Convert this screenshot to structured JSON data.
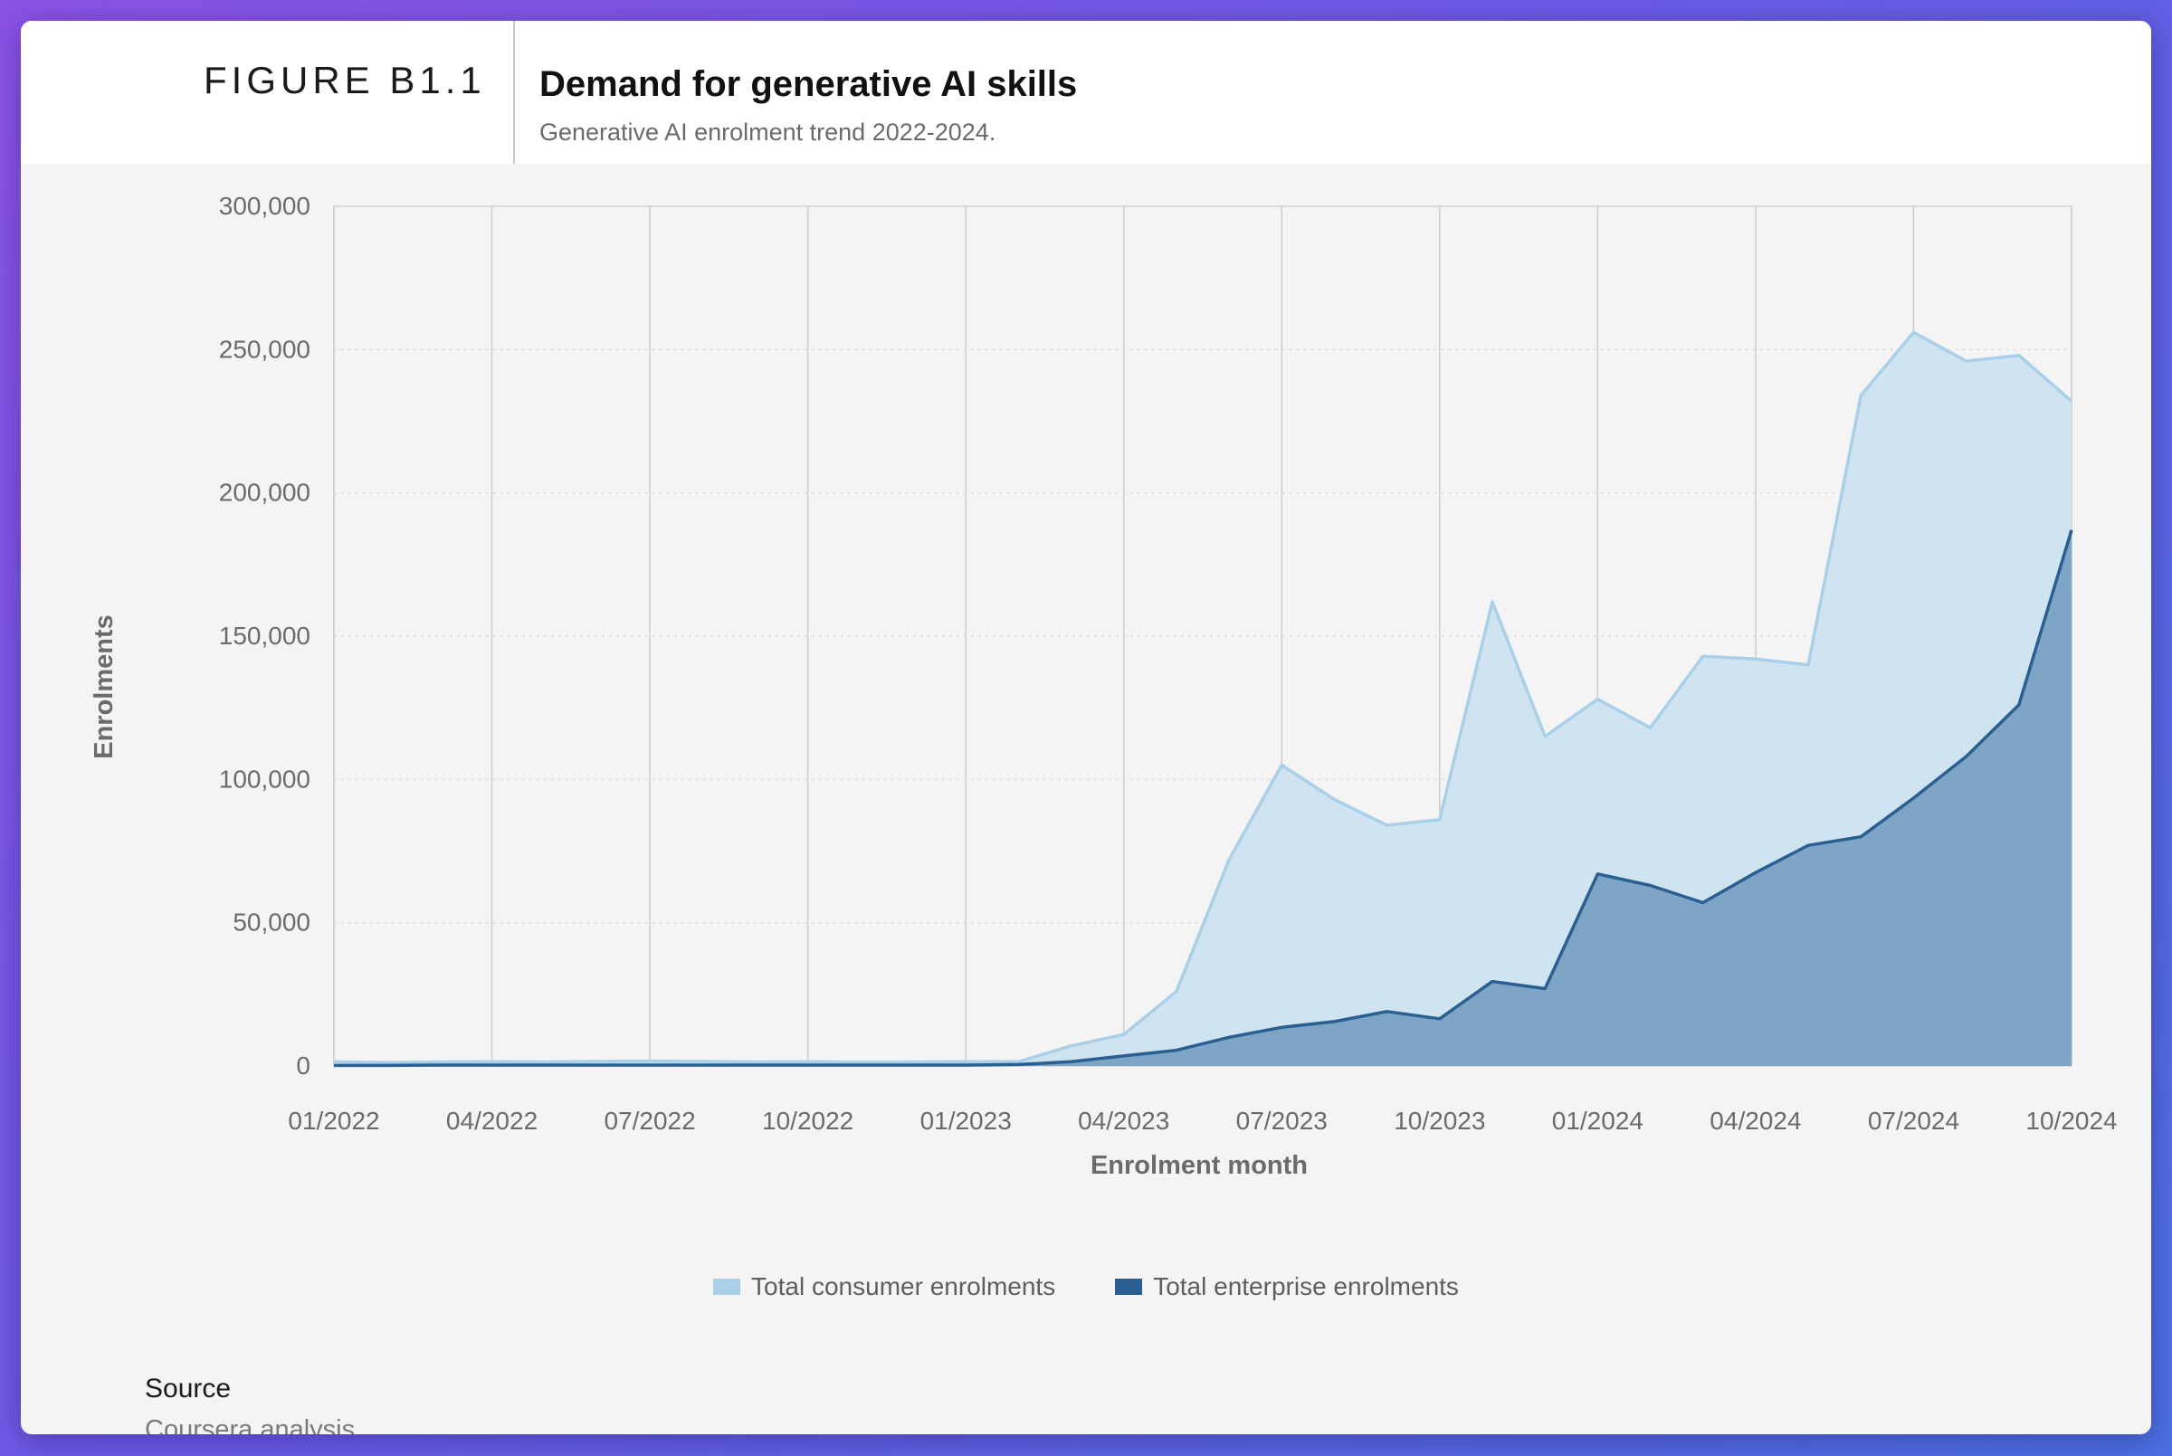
{
  "header": {
    "figure_label": "FIGURE B1.1",
    "title": "Demand for generative AI skills",
    "subtitle": "Generative AI enrolment trend 2022-2024."
  },
  "source": {
    "label": "Source",
    "text": "Coursera analysis."
  },
  "colors": {
    "consumer_fill": "#cde2f0",
    "consumer_line": "#a9d0e8",
    "enterprise_fill": "#7ba3c4",
    "enterprise_line": "#2a5f92",
    "legend_consumer": "#a9d0e8",
    "legend_enterprise": "#2a5f92"
  },
  "chart_data": {
    "type": "area",
    "xlabel": "Enrolment month",
    "ylabel": "Enrolments",
    "ylim": [
      0,
      300000
    ],
    "y_ticks": [
      0,
      50000,
      100000,
      150000,
      200000,
      250000,
      300000
    ],
    "y_tick_labels": [
      "0",
      "50,000",
      "100,000",
      "150,000",
      "200,000",
      "250,000",
      "300,000"
    ],
    "x_tick_labels": [
      "01/2022",
      "04/2022",
      "07/2022",
      "10/2022",
      "01/2023",
      "04/2023",
      "07/2023",
      "10/2023",
      "01/2024",
      "04/2024",
      "07/2024",
      "10/2024"
    ],
    "legend_position": "bottom",
    "grid": "vertical lines at x ticks, dotted horizontal lines at y ticks",
    "x": [
      "01/2022",
      "02/2022",
      "03/2022",
      "04/2022",
      "05/2022",
      "06/2022",
      "07/2022",
      "08/2022",
      "09/2022",
      "10/2022",
      "11/2022",
      "12/2022",
      "01/2023",
      "02/2023",
      "03/2023",
      "04/2023",
      "05/2023",
      "06/2023",
      "07/2023",
      "08/2023",
      "09/2023",
      "10/2023",
      "11/2023",
      "12/2023",
      "01/2024",
      "02/2024",
      "03/2024",
      "04/2024",
      "05/2024",
      "06/2024",
      "07/2024",
      "08/2024",
      "09/2024",
      "10/2024"
    ],
    "series": [
      {
        "name": "Total consumer enrolments",
        "values": [
          1500,
          1200,
          1400,
          1500,
          1400,
          1600,
          1700,
          1600,
          1400,
          1500,
          1300,
          1400,
          1500,
          1500,
          7000,
          11000,
          26000,
          72000,
          105000,
          93000,
          84000,
          86000,
          162000,
          115000,
          128000,
          118000,
          143000,
          142000,
          140000,
          234000,
          256000,
          246000,
          248000,
          232000
        ]
      },
      {
        "name": "Total enterprise enrolments",
        "values": [
          200,
          200,
          300,
          300,
          300,
          300,
          300,
          300,
          300,
          300,
          300,
          300,
          300,
          500,
          1500,
          3500,
          5500,
          10000,
          13500,
          15500,
          19000,
          16500,
          29500,
          27000,
          67000,
          63000,
          57000,
          67500,
          77000,
          80000,
          93500,
          108000,
          126000,
          187000
        ]
      }
    ]
  }
}
